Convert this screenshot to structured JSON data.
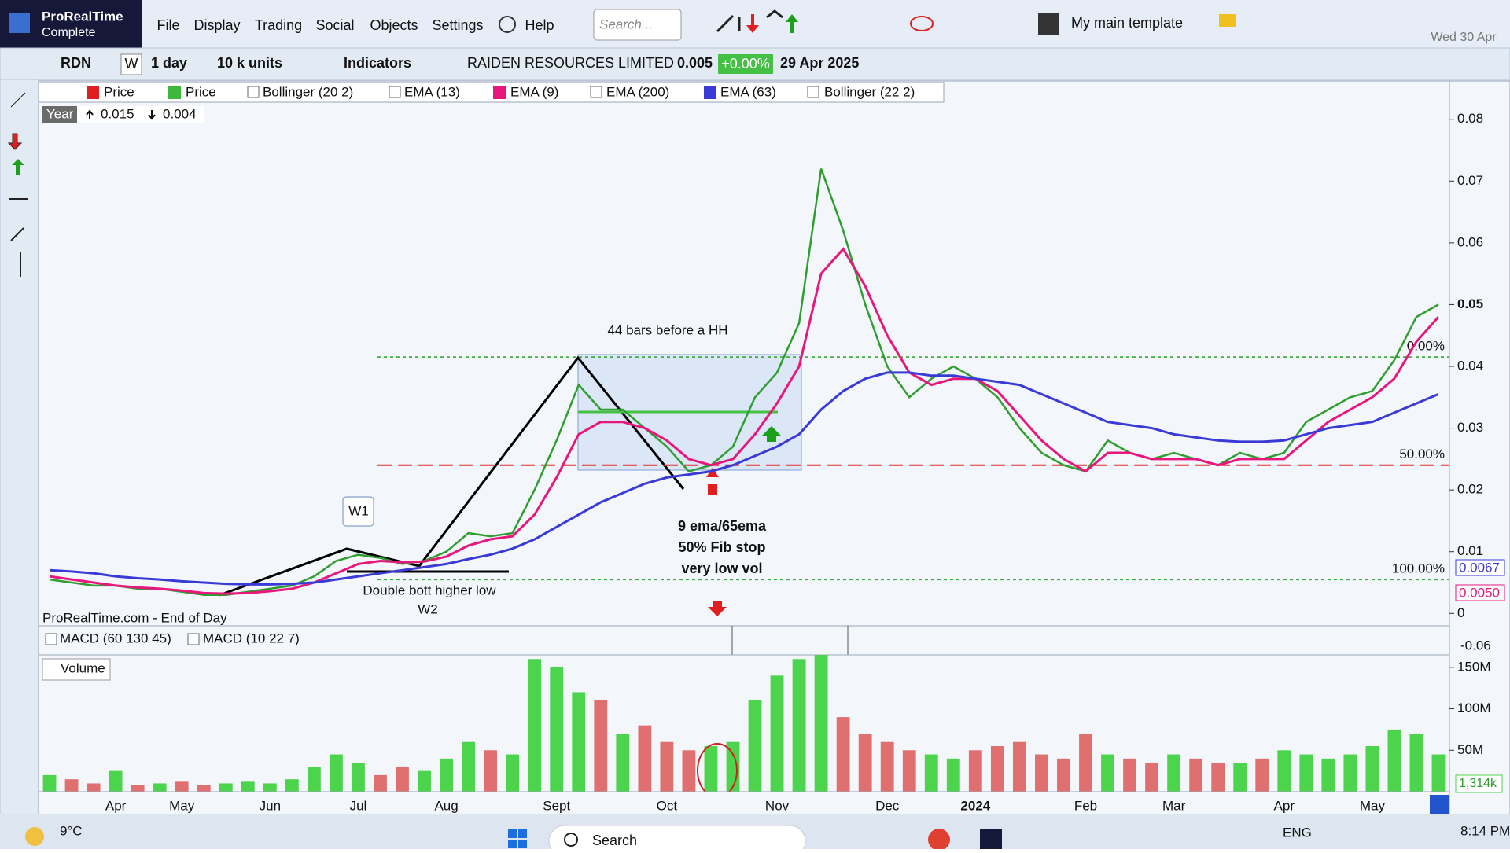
{
  "menu": {
    "brand": "ProRealTime",
    "edition": "Complete",
    "items": [
      "File",
      "Display",
      "Trading",
      "Social",
      "Objects",
      "Settings",
      "Help"
    ],
    "search": "Search...",
    "template": "My main template",
    "date": "Wed 30 Apr"
  },
  "toolbar": {
    "ticker": "RDN",
    "w": "W",
    "period": "1 day",
    "units": "10 k units",
    "indicators": "Indicators",
    "name": "RAIDEN RESOURCES LIMITED",
    "price": "0.005",
    "change": "+0.00%",
    "date": "29 Apr 2025"
  },
  "indicator_bar": {
    "price_a": "Price",
    "bollinger_a": "Bollinger (20 2)",
    "ema13": "EMA (13)",
    "ema200": "EMA (200)",
    "bollinger_b": "Bollinger (22 2)"
  },
  "year_box": {
    "label": "Year",
    "high": 0.015,
    "low": 0.004
  },
  "annotations": {
    "hh": "44 bars before a HH",
    "w1": "W1",
    "double": "Double bott higher low",
    "w2": "W2",
    "note1": "9 ema/65ema",
    "note2": "50% Fib stop",
    "note3": "very low vol",
    "source": "ProRealTime.com - End of Day"
  },
  "price_boxes": {
    "blue": "0.0067",
    "red": "0.0050"
  },
  "macd": {
    "items": [
      "MACD (60 130 45)",
      "MACD (10 22 7)"
    ],
    "axis_label": "-0.06"
  },
  "volume_box": "1,314k",
  "taskbar": {
    "weather": "9°C",
    "search": "Search",
    "lang": "ENG",
    "time": "8:14 PM"
  },
  "chart_data": [
    {
      "type": "line",
      "grid": false,
      "categories": [
        null,
        null,
        null,
        "Apr",
        null,
        null,
        "May",
        null,
        null,
        null,
        "Jun",
        null,
        null,
        null,
        "Jul",
        null,
        null,
        null,
        "Aug",
        null,
        null,
        null,
        null,
        "Sept",
        null,
        null,
        null,
        null,
        "Oct",
        null,
        null,
        null,
        null,
        "Nov",
        null,
        null,
        null,
        null,
        "Dec",
        null,
        null,
        null,
        "2024",
        null,
        null,
        null,
        null,
        "Feb",
        null,
        null,
        null,
        "Mar",
        null,
        null,
        null,
        null,
        "Apr",
        null,
        null,
        null,
        "May",
        null,
        null,
        null
      ],
      "series": [
        {
          "name": "Price",
          "color": "#2e9e2e",
          "values": [
            0.0055,
            0.005,
            0.0045,
            0.0045,
            0.004,
            0.004,
            0.0035,
            0.003,
            0.003,
            0.0035,
            0.004,
            0.0045,
            0.006,
            0.0085,
            0.0095,
            0.009,
            0.008,
            0.0085,
            0.01,
            0.013,
            0.0125,
            0.013,
            0.02,
            0.028,
            0.037,
            0.033,
            0.033,
            0.03,
            0.027,
            0.023,
            0.024,
            0.027,
            0.035,
            0.039,
            0.047,
            0.072,
            0.062,
            0.05,
            0.04,
            0.035,
            0.038,
            0.04,
            0.038,
            0.035,
            0.03,
            0.026,
            0.024,
            0.023,
            0.028,
            0.026,
            0.025,
            0.026,
            0.025,
            0.024,
            0.026,
            0.025,
            0.026,
            0.031,
            0.033,
            0.035,
            0.036,
            0.041,
            0.048,
            0.05
          ]
        },
        {
          "name": "EMA (9)",
          "color": "#e8177d",
          "values": [
            0.006,
            0.0055,
            0.005,
            0.0045,
            0.0042,
            0.004,
            0.0037,
            0.0033,
            0.0032,
            0.0033,
            0.0036,
            0.004,
            0.005,
            0.0065,
            0.008,
            0.0085,
            0.0083,
            0.0084,
            0.0092,
            0.011,
            0.012,
            0.0125,
            0.016,
            0.022,
            0.029,
            0.031,
            0.031,
            0.03,
            0.028,
            0.025,
            0.024,
            0.025,
            0.029,
            0.034,
            0.04,
            0.055,
            0.059,
            0.053,
            0.045,
            0.039,
            0.037,
            0.038,
            0.038,
            0.036,
            0.032,
            0.028,
            0.025,
            0.023,
            0.026,
            0.026,
            0.025,
            0.025,
            0.025,
            0.024,
            0.025,
            0.025,
            0.025,
            0.028,
            0.031,
            0.033,
            0.035,
            0.038,
            0.044,
            0.048
          ]
        },
        {
          "name": "EMA (63)",
          "color": "#3a3ad6",
          "values": [
            0.007,
            0.0068,
            0.0065,
            0.006,
            0.0057,
            0.0055,
            0.0052,
            0.005,
            0.0048,
            0.0047,
            0.0047,
            0.0048,
            0.005,
            0.0055,
            0.006,
            0.0065,
            0.007,
            0.0075,
            0.008,
            0.0088,
            0.0095,
            0.0105,
            0.012,
            0.014,
            0.016,
            0.018,
            0.0195,
            0.021,
            0.022,
            0.0225,
            0.023,
            0.024,
            0.0255,
            0.027,
            0.029,
            0.033,
            0.036,
            0.038,
            0.039,
            0.039,
            0.0385,
            0.0385,
            0.038,
            0.0375,
            0.037,
            0.0355,
            0.034,
            0.0325,
            0.031,
            0.0305,
            0.03,
            0.029,
            0.0285,
            0.028,
            0.0278,
            0.0278,
            0.028,
            0.029,
            0.03,
            0.0305,
            0.031,
            0.0325,
            0.034,
            0.0355
          ]
        }
      ],
      "ylim": [
        -0.002,
        0.0862
      ],
      "yticks": [
        0,
        0.01,
        0.02,
        0.03,
        0.04,
        0.05,
        0.06,
        0.07,
        0.08
      ],
      "fib_levels": [
        {
          "label": "0.00%",
          "value": 0.0415,
          "color": "#3fae3f"
        },
        {
          "label": "50.00%",
          "value": 0.024,
          "color": "#e03030"
        },
        {
          "label": "100.00%",
          "value": 0.0055,
          "color": "#3fae3f"
        }
      ]
    },
    {
      "type": "bar",
      "title": "Volume",
      "up_color": "#4cd44c",
      "down_color": "#e07070",
      "values": [
        20000000,
        15000000,
        10000000,
        25000000,
        8000000,
        10000000,
        12000000,
        8000000,
        10000000,
        12000000,
        10000000,
        15000000,
        30000000,
        45000000,
        35000000,
        20000000,
        30000000,
        25000000,
        40000000,
        60000000,
        50000000,
        45000000,
        160000000,
        150000000,
        120000000,
        110000000,
        70000000,
        80000000,
        60000000,
        50000000,
        55000000,
        60000000,
        110000000,
        140000000,
        160000000,
        165000000,
        90000000,
        70000000,
        60000000,
        50000000,
        45000000,
        40000000,
        50000000,
        55000000,
        60000000,
        45000000,
        40000000,
        70000000,
        45000000,
        40000000,
        35000000,
        45000000,
        40000000,
        35000000,
        35000000,
        40000000,
        50000000,
        45000000,
        40000000,
        45000000,
        55000000,
        75000000,
        70000000,
        45000000
      ],
      "ylim": [
        0,
        165000000
      ],
      "yticks": [
        {
          "value": 50000000,
          "label": "50M"
        },
        {
          "value": 100000000,
          "label": "100M"
        },
        {
          "value": 150000000,
          "label": "150M"
        }
      ]
    }
  ]
}
